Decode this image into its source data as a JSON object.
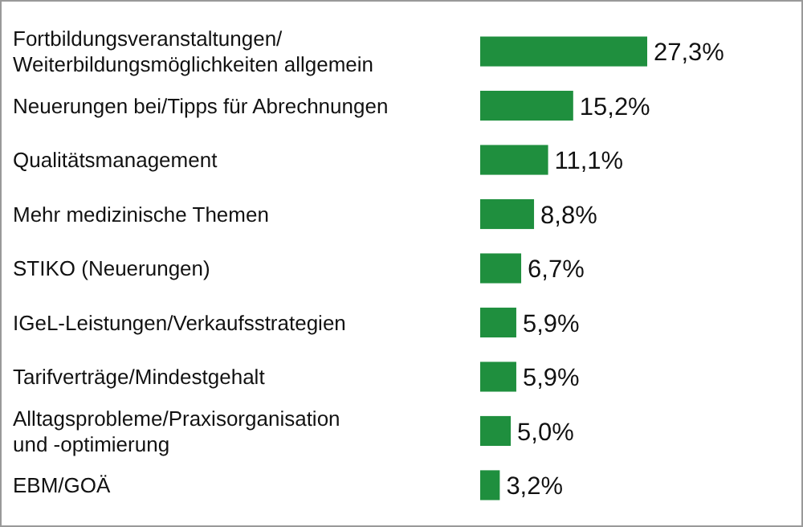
{
  "chart_data": {
    "type": "bar",
    "orientation": "horizontal",
    "categories": [
      "Fortbildungsveranstaltungen/\nWeiterbildungsmöglichkeiten allgemein",
      "Neuerungen bei/Tipps für Abrechnungen",
      "Qualitätsmanagement",
      "Mehr medizinische Themen",
      "STIKO (Neuerungen)",
      "IGeL-Leistungen/Verkaufsstrategien",
      "Tarifverträge/Mindestgehalt",
      "Alltagsprobleme/Praxisorganisation\nund -optimierung",
      "EBM/GOÄ"
    ],
    "values": [
      27.3,
      15.2,
      11.1,
      8.8,
      6.7,
      5.9,
      5.9,
      5.0,
      3.2
    ],
    "value_labels": [
      "27,3%",
      "15,2%",
      "11,1%",
      "8,8%",
      "6,7%",
      "5,9%",
      "5,9%",
      "5,0%",
      "3,2%"
    ],
    "color": "#1f8f3e"
  }
}
